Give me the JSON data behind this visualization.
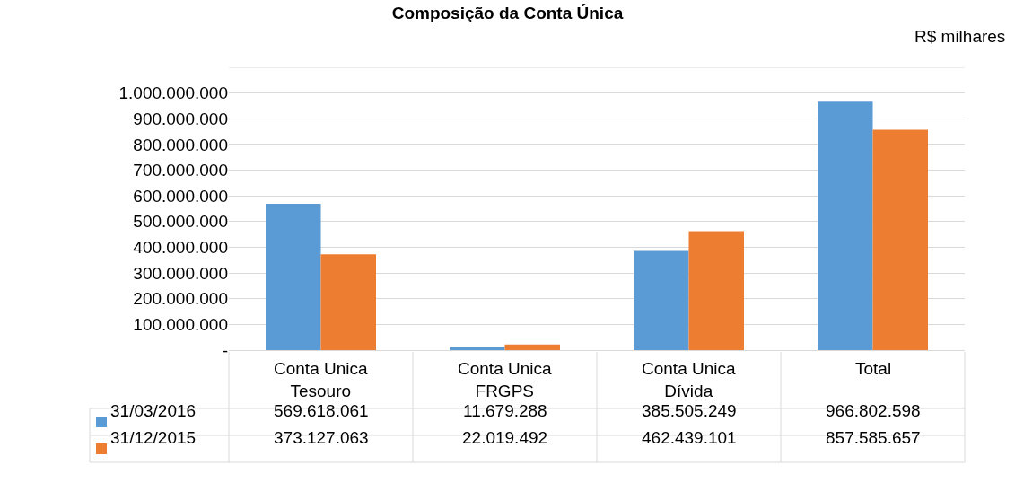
{
  "chart_data": {
    "type": "bar",
    "title": "Composição da Conta Única",
    "annotations": [
      "R$ milhares"
    ],
    "categories": [
      "Conta Unica Tesouro",
      "Conta Unica FRGPS",
      "Conta Unica Dívida",
      "Total"
    ],
    "series": [
      {
        "name": "31/03/2016",
        "color": "#5b9bd5",
        "values": [
          569618061,
          11679288,
          385505249,
          966802598
        ],
        "value_labels": [
          "569.618.061",
          "11.679.288",
          "385.505.249",
          "966.802.598"
        ]
      },
      {
        "name": "31/12/2015",
        "color": "#ed7d31",
        "values": [
          373127063,
          22019492,
          462439101,
          857585657
        ],
        "value_labels": [
          "373.127.063",
          "22.019.492",
          "462.439.101",
          "857.585.657"
        ]
      }
    ],
    "ylim": [
      0,
      1100000000
    ],
    "yticks": [
      {
        "value": 0,
        "label": "-"
      },
      {
        "value": 100000000,
        "label": "100.000.000"
      },
      {
        "value": 200000000,
        "label": "200.000.000"
      },
      {
        "value": 300000000,
        "label": "300.000.000"
      },
      {
        "value": 400000000,
        "label": "400.000.000"
      },
      {
        "value": 500000000,
        "label": "500.000.000"
      },
      {
        "value": 600000000,
        "label": "600.000.000"
      },
      {
        "value": 700000000,
        "label": "700.000.000"
      },
      {
        "value": 800000000,
        "label": "800.000.000"
      },
      {
        "value": 900000000,
        "label": "900.000.000"
      },
      {
        "value": 1000000000,
        "label": "1.000.000.000"
      },
      {
        "value": 1100000000,
        "label": null
      }
    ],
    "grid": "y",
    "legend": "bottom left"
  }
}
